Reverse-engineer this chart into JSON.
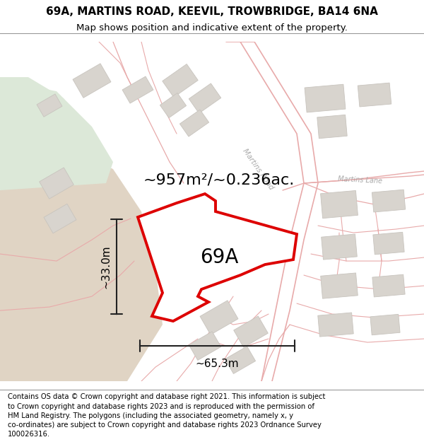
{
  "title_line1": "69A, MARTINS ROAD, KEEVIL, TROWBRIDGE, BA14 6NA",
  "title_line2": "Map shows position and indicative extent of the property.",
  "footer_text": "Contains OS data © Crown copyright and database right 2021. This information is subject to Crown copyright and database rights 2023 and is reproduced with the permission of HM Land Registry. The polygons (including the associated geometry, namely x, y co-ordinates) are subject to Crown copyright and database rights 2023 Ordnance Survey 100026316.",
  "label_area": "~957m²/~0.236ac.",
  "label_width": "~65.3m",
  "label_height": "~33.0m",
  "plot_label": "69A",
  "road_label_martins_road": "Martins Road",
  "road_label_martins_lane": "Martins Lane",
  "bg_color": "#f7f4f0",
  "building_fill": "#d8d4ce",
  "building_edge": "#c8c4be",
  "road_line_color": "#e8aaaa",
  "road_line_color2": "#c0b0b0",
  "plot_fill": "#ffffff",
  "plot_edge": "#dd0000",
  "sandy_fill": "#e0d4c4",
  "green_fill": "#dce8d8",
  "white_area": "#ffffff",
  "dim_color": "#222222",
  "title_fontsize": 11,
  "subtitle_fontsize": 9.5,
  "footer_fontsize": 7.2,
  "label_area_fontsize": 16,
  "plot_label_fontsize": 20,
  "dim_label_fontsize": 11
}
